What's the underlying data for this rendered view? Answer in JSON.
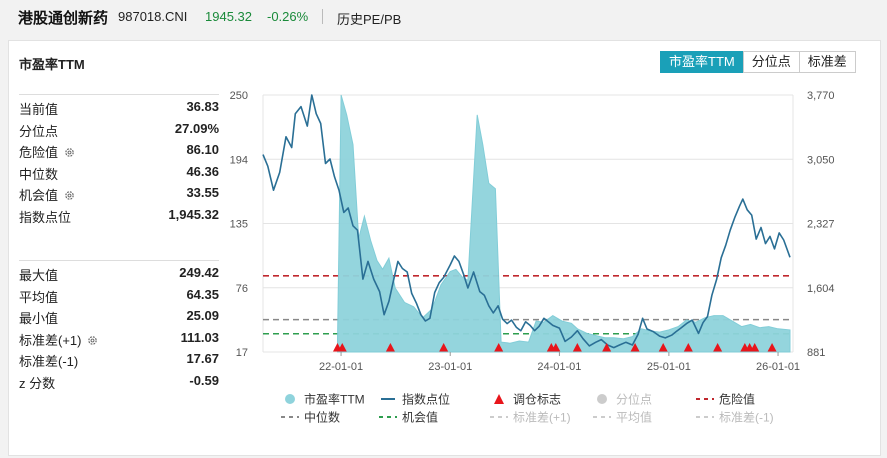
{
  "header": {
    "name": "港股通创新药",
    "code": "987018.CNI",
    "price": "1945.32",
    "change": "-0.26%",
    "history_link": "历史PE/PB"
  },
  "panel": {
    "title": "市盈率TTM",
    "tabs": [
      {
        "label": "市盈率TTM",
        "active": true
      },
      {
        "label": "分位点",
        "active": false
      },
      {
        "label": "标准差",
        "active": false
      }
    ]
  },
  "stats_top": [
    {
      "label": "当前值",
      "value": "36.83",
      "gear": false
    },
    {
      "label": "分位点",
      "value": "27.09%",
      "gear": false
    },
    {
      "label": "危险值",
      "value": "86.10",
      "gear": true
    },
    {
      "label": "中位数",
      "value": "46.36",
      "gear": false
    },
    {
      "label": "机会值",
      "value": "33.55",
      "gear": true
    },
    {
      "label": "指数点位",
      "value": "1,945.32",
      "gear": false
    }
  ],
  "stats_bottom": [
    {
      "label": "最大值",
      "value": "249.42",
      "gear": false
    },
    {
      "label": "平均值",
      "value": "64.35",
      "gear": false
    },
    {
      "label": "最小值",
      "value": "25.09",
      "gear": false
    },
    {
      "label": "标准差(+1)",
      "value": "111.03",
      "gear": true
    },
    {
      "label": "标准差(-1)",
      "value": "17.67",
      "gear": false
    },
    {
      "label": "z 分数",
      "value": "-0.59",
      "gear": false
    }
  ],
  "colors": {
    "accent": "#1aa0b8",
    "pe_fill": "#8fd3dc",
    "index_line": "#2a6f95",
    "danger": "#c0272d",
    "median": "#888888",
    "opportunity": "#2e9e4f",
    "marker": "#e8151b",
    "disabled": "#bbbbbb"
  },
  "chart_data": {
    "type": "area",
    "x_ticks": [
      "22-01-01",
      "23-01-01",
      "24-01-01",
      "25-01-01",
      "26-01-01"
    ],
    "x_range": [
      "2021-04-15",
      "2026-02-20"
    ],
    "y_left_ticks": [
      "250",
      "194",
      "135",
      "76",
      "17"
    ],
    "y_left_range": [
      17,
      250
    ],
    "y_right_ticks": [
      "3,770",
      "3,050",
      "2,327",
      "1,604",
      "881"
    ],
    "y_right_range": [
      881,
      3770
    ],
    "reference_lines": {
      "danger": 86.1,
      "median": 46.36,
      "opportunity": 33.55
    },
    "pe_series": [
      [
        "2021-12-20",
        26
      ],
      [
        "2022-01-01",
        250
      ],
      [
        "2022-01-20",
        232
      ],
      [
        "2022-02-10",
        205
      ],
      [
        "2022-03-01",
        120
      ],
      [
        "2022-03-20",
        140
      ],
      [
        "2022-04-10",
        118
      ],
      [
        "2022-05-01",
        100
      ],
      [
        "2022-05-20",
        92
      ],
      [
        "2022-06-10",
        102
      ],
      [
        "2022-07-01",
        75
      ],
      [
        "2022-08-01",
        62
      ],
      [
        "2022-09-01",
        58
      ],
      [
        "2022-10-01",
        48
      ],
      [
        "2022-11-01",
        56
      ],
      [
        "2022-12-01",
        78
      ],
      [
        "2023-01-01",
        90
      ],
      [
        "2023-01-20",
        92
      ],
      [
        "2023-02-10",
        85
      ],
      [
        "2023-03-01",
        82
      ],
      [
        "2023-04-01",
        232
      ],
      [
        "2023-04-20",
        205
      ],
      [
        "2023-05-10",
        170
      ],
      [
        "2023-06-01",
        165
      ],
      [
        "2023-06-20",
        26
      ],
      [
        "2023-07-20",
        25
      ],
      [
        "2023-08-20",
        27
      ],
      [
        "2023-09-20",
        26
      ],
      [
        "2023-10-15",
        45
      ],
      [
        "2023-11-10",
        44
      ],
      [
        "2023-12-10",
        50
      ],
      [
        "2024-01-10",
        45
      ],
      [
        "2024-02-10",
        43
      ],
      [
        "2024-03-01",
        38
      ],
      [
        "2024-04-01",
        34
      ],
      [
        "2024-05-01",
        32
      ],
      [
        "2024-06-01",
        30
      ],
      [
        "2024-07-01",
        30
      ],
      [
        "2024-08-01",
        29
      ],
      [
        "2024-09-01",
        31
      ],
      [
        "2024-10-01",
        38
      ],
      [
        "2024-11-01",
        36
      ],
      [
        "2024-12-01",
        35
      ],
      [
        "2025-01-01",
        37
      ],
      [
        "2025-02-01",
        40
      ],
      [
        "2025-03-01",
        46
      ],
      [
        "2025-04-01",
        44
      ],
      [
        "2025-05-01",
        48
      ],
      [
        "2025-06-01",
        50
      ],
      [
        "2025-07-01",
        50
      ],
      [
        "2025-08-01",
        45
      ],
      [
        "2025-09-01",
        40
      ],
      [
        "2025-10-01",
        42
      ],
      [
        "2025-11-01",
        39
      ],
      [
        "2025-12-01",
        40
      ],
      [
        "2026-01-01",
        38
      ],
      [
        "2026-02-10",
        37
      ]
    ],
    "index_series": [
      [
        "2021-04-15",
        3100
      ],
      [
        "2021-05-01",
        2970
      ],
      [
        "2021-05-20",
        2700
      ],
      [
        "2021-06-10",
        2900
      ],
      [
        "2021-07-01",
        3300
      ],
      [
        "2021-07-20",
        3180
      ],
      [
        "2021-08-01",
        3560
      ],
      [
        "2021-08-20",
        3640
      ],
      [
        "2021-09-10",
        3420
      ],
      [
        "2021-09-25",
        3770
      ],
      [
        "2021-10-10",
        3560
      ],
      [
        "2021-10-25",
        3450
      ],
      [
        "2021-11-10",
        3000
      ],
      [
        "2021-11-25",
        3050
      ],
      [
        "2021-12-10",
        2850
      ],
      [
        "2021-12-25",
        2700
      ],
      [
        "2022-01-10",
        2450
      ],
      [
        "2022-01-25",
        2500
      ],
      [
        "2022-02-10",
        2300
      ],
      [
        "2022-02-25",
        2250
      ],
      [
        "2022-03-15",
        1700
      ],
      [
        "2022-04-01",
        1900
      ],
      [
        "2022-04-20",
        1700
      ],
      [
        "2022-05-10",
        1560
      ],
      [
        "2022-05-25",
        1300
      ],
      [
        "2022-06-10",
        1450
      ],
      [
        "2022-06-25",
        1680
      ],
      [
        "2022-07-10",
        1900
      ],
      [
        "2022-07-25",
        1820
      ],
      [
        "2022-08-10",
        1780
      ],
      [
        "2022-08-25",
        1540
      ],
      [
        "2022-09-10",
        1430
      ],
      [
        "2022-09-25",
        1300
      ],
      [
        "2022-10-10",
        1230
      ],
      [
        "2022-10-25",
        1260
      ],
      [
        "2022-11-10",
        1550
      ],
      [
        "2022-11-25",
        1660
      ],
      [
        "2022-12-10",
        1720
      ],
      [
        "2023-01-01",
        1860
      ],
      [
        "2023-01-15",
        1960
      ],
      [
        "2023-01-30",
        1900
      ],
      [
        "2023-02-15",
        1750
      ],
      [
        "2023-03-01",
        1600
      ],
      [
        "2023-03-20",
        1780
      ],
      [
        "2023-04-10",
        1560
      ],
      [
        "2023-04-25",
        1520
      ],
      [
        "2023-05-10",
        1400
      ],
      [
        "2023-05-25",
        1320
      ],
      [
        "2023-06-10",
        1400
      ],
      [
        "2023-06-25",
        1250
      ],
      [
        "2023-07-10",
        1200
      ],
      [
        "2023-07-25",
        1240
      ],
      [
        "2023-08-10",
        1160
      ],
      [
        "2023-08-25",
        1120
      ],
      [
        "2023-09-10",
        1220
      ],
      [
        "2023-09-25",
        1180
      ],
      [
        "2023-10-10",
        1120
      ],
      [
        "2023-10-25",
        1170
      ],
      [
        "2023-11-10",
        1260
      ],
      [
        "2023-11-25",
        1220
      ],
      [
        "2023-12-10",
        1180
      ],
      [
        "2024-01-01",
        1150
      ],
      [
        "2024-01-20",
        1000
      ],
      [
        "2024-02-10",
        1050
      ],
      [
        "2024-03-01",
        1120
      ],
      [
        "2024-03-20",
        1030
      ],
      [
        "2024-04-10",
        950
      ],
      [
        "2024-05-01",
        990
      ],
      [
        "2024-05-20",
        1020
      ],
      [
        "2024-06-10",
        960
      ],
      [
        "2024-07-01",
        930
      ],
      [
        "2024-07-20",
        960
      ],
      [
        "2024-08-10",
        990
      ],
      [
        "2024-09-01",
        960
      ],
      [
        "2024-09-20",
        1080
      ],
      [
        "2024-10-05",
        1260
      ],
      [
        "2024-10-20",
        1140
      ],
      [
        "2024-11-10",
        1110
      ],
      [
        "2024-12-01",
        1060
      ],
      [
        "2024-12-20",
        1040
      ],
      [
        "2025-01-10",
        1070
      ],
      [
        "2025-01-25",
        1110
      ],
      [
        "2025-02-10",
        1150
      ],
      [
        "2025-03-01",
        1200
      ],
      [
        "2025-03-20",
        1240
      ],
      [
        "2025-04-10",
        1090
      ],
      [
        "2025-04-25",
        1210
      ],
      [
        "2025-05-10",
        1280
      ],
      [
        "2025-05-25",
        1520
      ],
      [
        "2025-06-10",
        1700
      ],
      [
        "2025-06-25",
        1940
      ],
      [
        "2025-07-10",
        2080
      ],
      [
        "2025-07-25",
        2250
      ],
      [
        "2025-08-10",
        2400
      ],
      [
        "2025-08-25",
        2520
      ],
      [
        "2025-09-05",
        2600
      ],
      [
        "2025-09-20",
        2480
      ],
      [
        "2025-10-05",
        2420
      ],
      [
        "2025-10-20",
        2150
      ],
      [
        "2025-11-05",
        2280
      ],
      [
        "2025-11-20",
        2100
      ],
      [
        "2025-12-05",
        2180
      ],
      [
        "2025-12-20",
        2040
      ],
      [
        "2026-01-05",
        2220
      ],
      [
        "2026-01-20",
        2140
      ],
      [
        "2026-02-10",
        1945
      ]
    ],
    "rebalance_markers": [
      "2021-12-20",
      "2022-01-05",
      "2022-06-15",
      "2022-12-10",
      "2023-06-12",
      "2023-12-05",
      "2023-12-20",
      "2024-03-01",
      "2024-06-07",
      "2024-09-10",
      "2024-12-13",
      "2025-03-07",
      "2025-06-13",
      "2025-09-12",
      "2025-09-28",
      "2025-10-15",
      "2025-12-12"
    ],
    "legend": [
      {
        "label": "市盈率TTM",
        "symbol": "circle",
        "color": "#8fd3dc",
        "enabled": true
      },
      {
        "label": "指数点位",
        "symbol": "line",
        "color": "#2a6f95",
        "enabled": true
      },
      {
        "label": "调仓标志",
        "symbol": "triangle",
        "color": "#e8151b",
        "enabled": true
      },
      {
        "label": "分位点",
        "symbol": "circle",
        "color": "#cccccc",
        "enabled": false
      },
      {
        "label": "危险值",
        "symbol": "dash",
        "color": "#c0272d",
        "enabled": true
      },
      {
        "label": "中位数",
        "symbol": "dash",
        "color": "#888888",
        "enabled": true
      },
      {
        "label": "机会值",
        "symbol": "dash",
        "color": "#2e9e4f",
        "enabled": true
      },
      {
        "label": "标准差(+1)",
        "symbol": "dash",
        "color": "#cccccc",
        "enabled": false
      },
      {
        "label": "平均值",
        "symbol": "dash",
        "color": "#cccccc",
        "enabled": false
      },
      {
        "label": "标准差(-1)",
        "symbol": "dash",
        "color": "#cccccc",
        "enabled": false
      }
    ]
  }
}
